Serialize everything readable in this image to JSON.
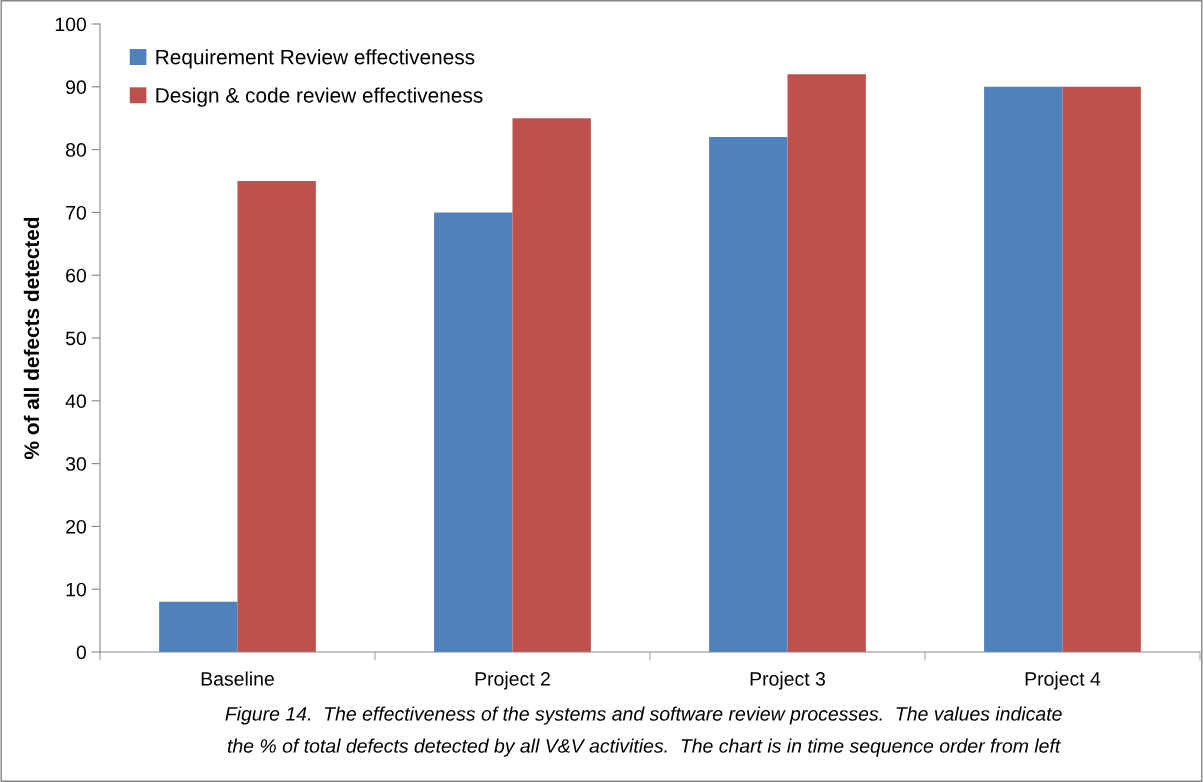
{
  "chart_data": {
    "type": "bar",
    "ylabel": "% of all defects detected",
    "categories": [
      "Baseline",
      "Project 2",
      "Project 3",
      "Project 4"
    ],
    "series": [
      {
        "name": "Requirement Review effectiveness",
        "color": "#4f81bd",
        "values": [
          8,
          70,
          82,
          90
        ]
      },
      {
        "name": "Design & code review effectiveness",
        "color": "#c0504d",
        "values": [
          75,
          85,
          92,
          90
        ]
      }
    ],
    "ylim": [
      0,
      100
    ],
    "yticks": [
      0,
      10,
      20,
      30,
      40,
      50,
      60,
      70,
      80,
      90,
      100
    ],
    "grid": false,
    "legend": "top left",
    "annotations": [
      "Figure 14.  The effectiveness of the systems and software review processes.  The values indicate",
      "the % of total defects detected by all V&V activities.  The chart is in time sequence order from left"
    ]
  }
}
